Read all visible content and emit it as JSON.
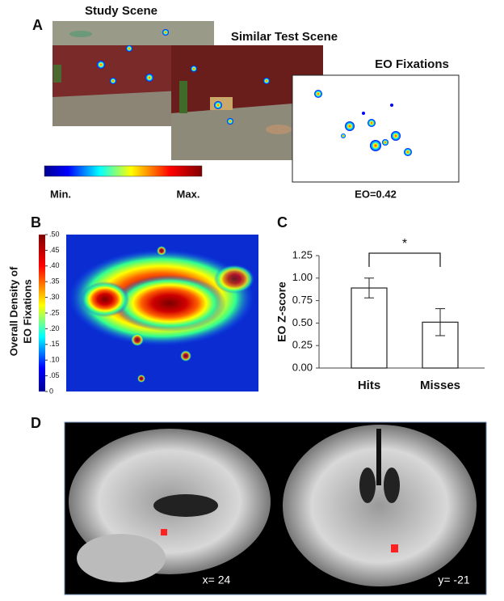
{
  "panels": {
    "a": {
      "label": "A",
      "study_title": "Study Scene",
      "test_title": "Similar Test Scene",
      "eo_title": "EO Fixations",
      "min_label": "Min.",
      "max_label": "Max.",
      "eo_value": "EO=0.42"
    },
    "b": {
      "label": "B",
      "colorbar_label": [
        "Overall Density of",
        "EO Fixations"
      ],
      "colorbar_ticks": [
        {
          "value": 0.5,
          "label": ".50"
        },
        {
          "value": 0.45,
          "label": ".45"
        },
        {
          "value": 0.4,
          "label": ".40"
        },
        {
          "value": 0.35,
          "label": ".35"
        },
        {
          "value": 0.3,
          "label": ".30"
        },
        {
          "value": 0.25,
          "label": ".25"
        },
        {
          "value": 0.2,
          "label": ".20"
        },
        {
          "value": 0.15,
          "label": ".15"
        },
        {
          "value": 0.1,
          "label": ".10"
        },
        {
          "value": 0.05,
          "label": ".05"
        },
        0
      ],
      "colorbar_lim": [
        0,
        0.5
      ]
    },
    "c": {
      "label": "C"
    },
    "d": {
      "label": "D",
      "sagittal_label": "x= 24",
      "coronal_label": "y= -21"
    }
  },
  "chart_data": {
    "type": "bar",
    "ylabel": "EO Z-score",
    "categories": [
      "Hits",
      "Misses"
    ],
    "values": [
      0.89,
      0.51
    ],
    "errors": [
      0.11,
      0.15
    ],
    "color": "#ffffff",
    "significance": "*",
    "ylim": [
      0,
      1.25
    ],
    "yticks": [
      {
        "value": 0,
        "label": "0.00"
      },
      {
        "value": 0.25,
        "label": "0.25"
      },
      {
        "value": 0.5,
        "label": "0.50"
      },
      {
        "value": 0.75,
        "label": "0.75"
      },
      {
        "value": 1,
        "label": "1.00"
      },
      {
        "value": 1.25,
        "label": "1.25"
      }
    ]
  }
}
